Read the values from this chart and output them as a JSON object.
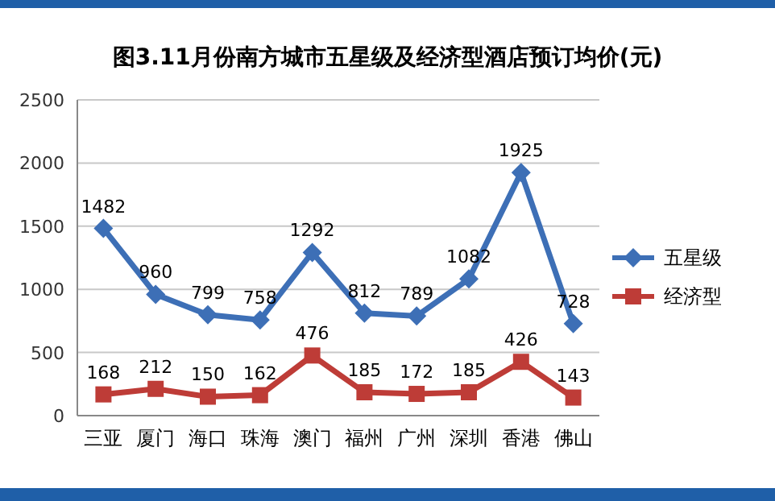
{
  "chart_data": {
    "type": "line",
    "title": "图3.11月份南方城市五星级及经济型酒店预订均价(元)",
    "categories": [
      "三亚",
      "厦门",
      "海口",
      "珠海",
      "澳门",
      "福州",
      "广州",
      "深圳",
      "香港",
      "佛山"
    ],
    "series": [
      {
        "name": "五星级",
        "color": "#3d6fb6",
        "marker": "diamond",
        "values": [
          1482,
          960,
          799,
          758,
          1292,
          812,
          789,
          1082,
          1925,
          728
        ]
      },
      {
        "name": "经济型",
        "color": "#be3c37",
        "marker": "square",
        "values": [
          168,
          212,
          150,
          162,
          476,
          185,
          172,
          185,
          426,
          143
        ]
      }
    ],
    "ylim": [
      0,
      2500
    ],
    "yticks": [
      0,
      500,
      1000,
      1500,
      2000,
      2500
    ],
    "grid": "y",
    "legend": "right",
    "data_labels": true
  }
}
